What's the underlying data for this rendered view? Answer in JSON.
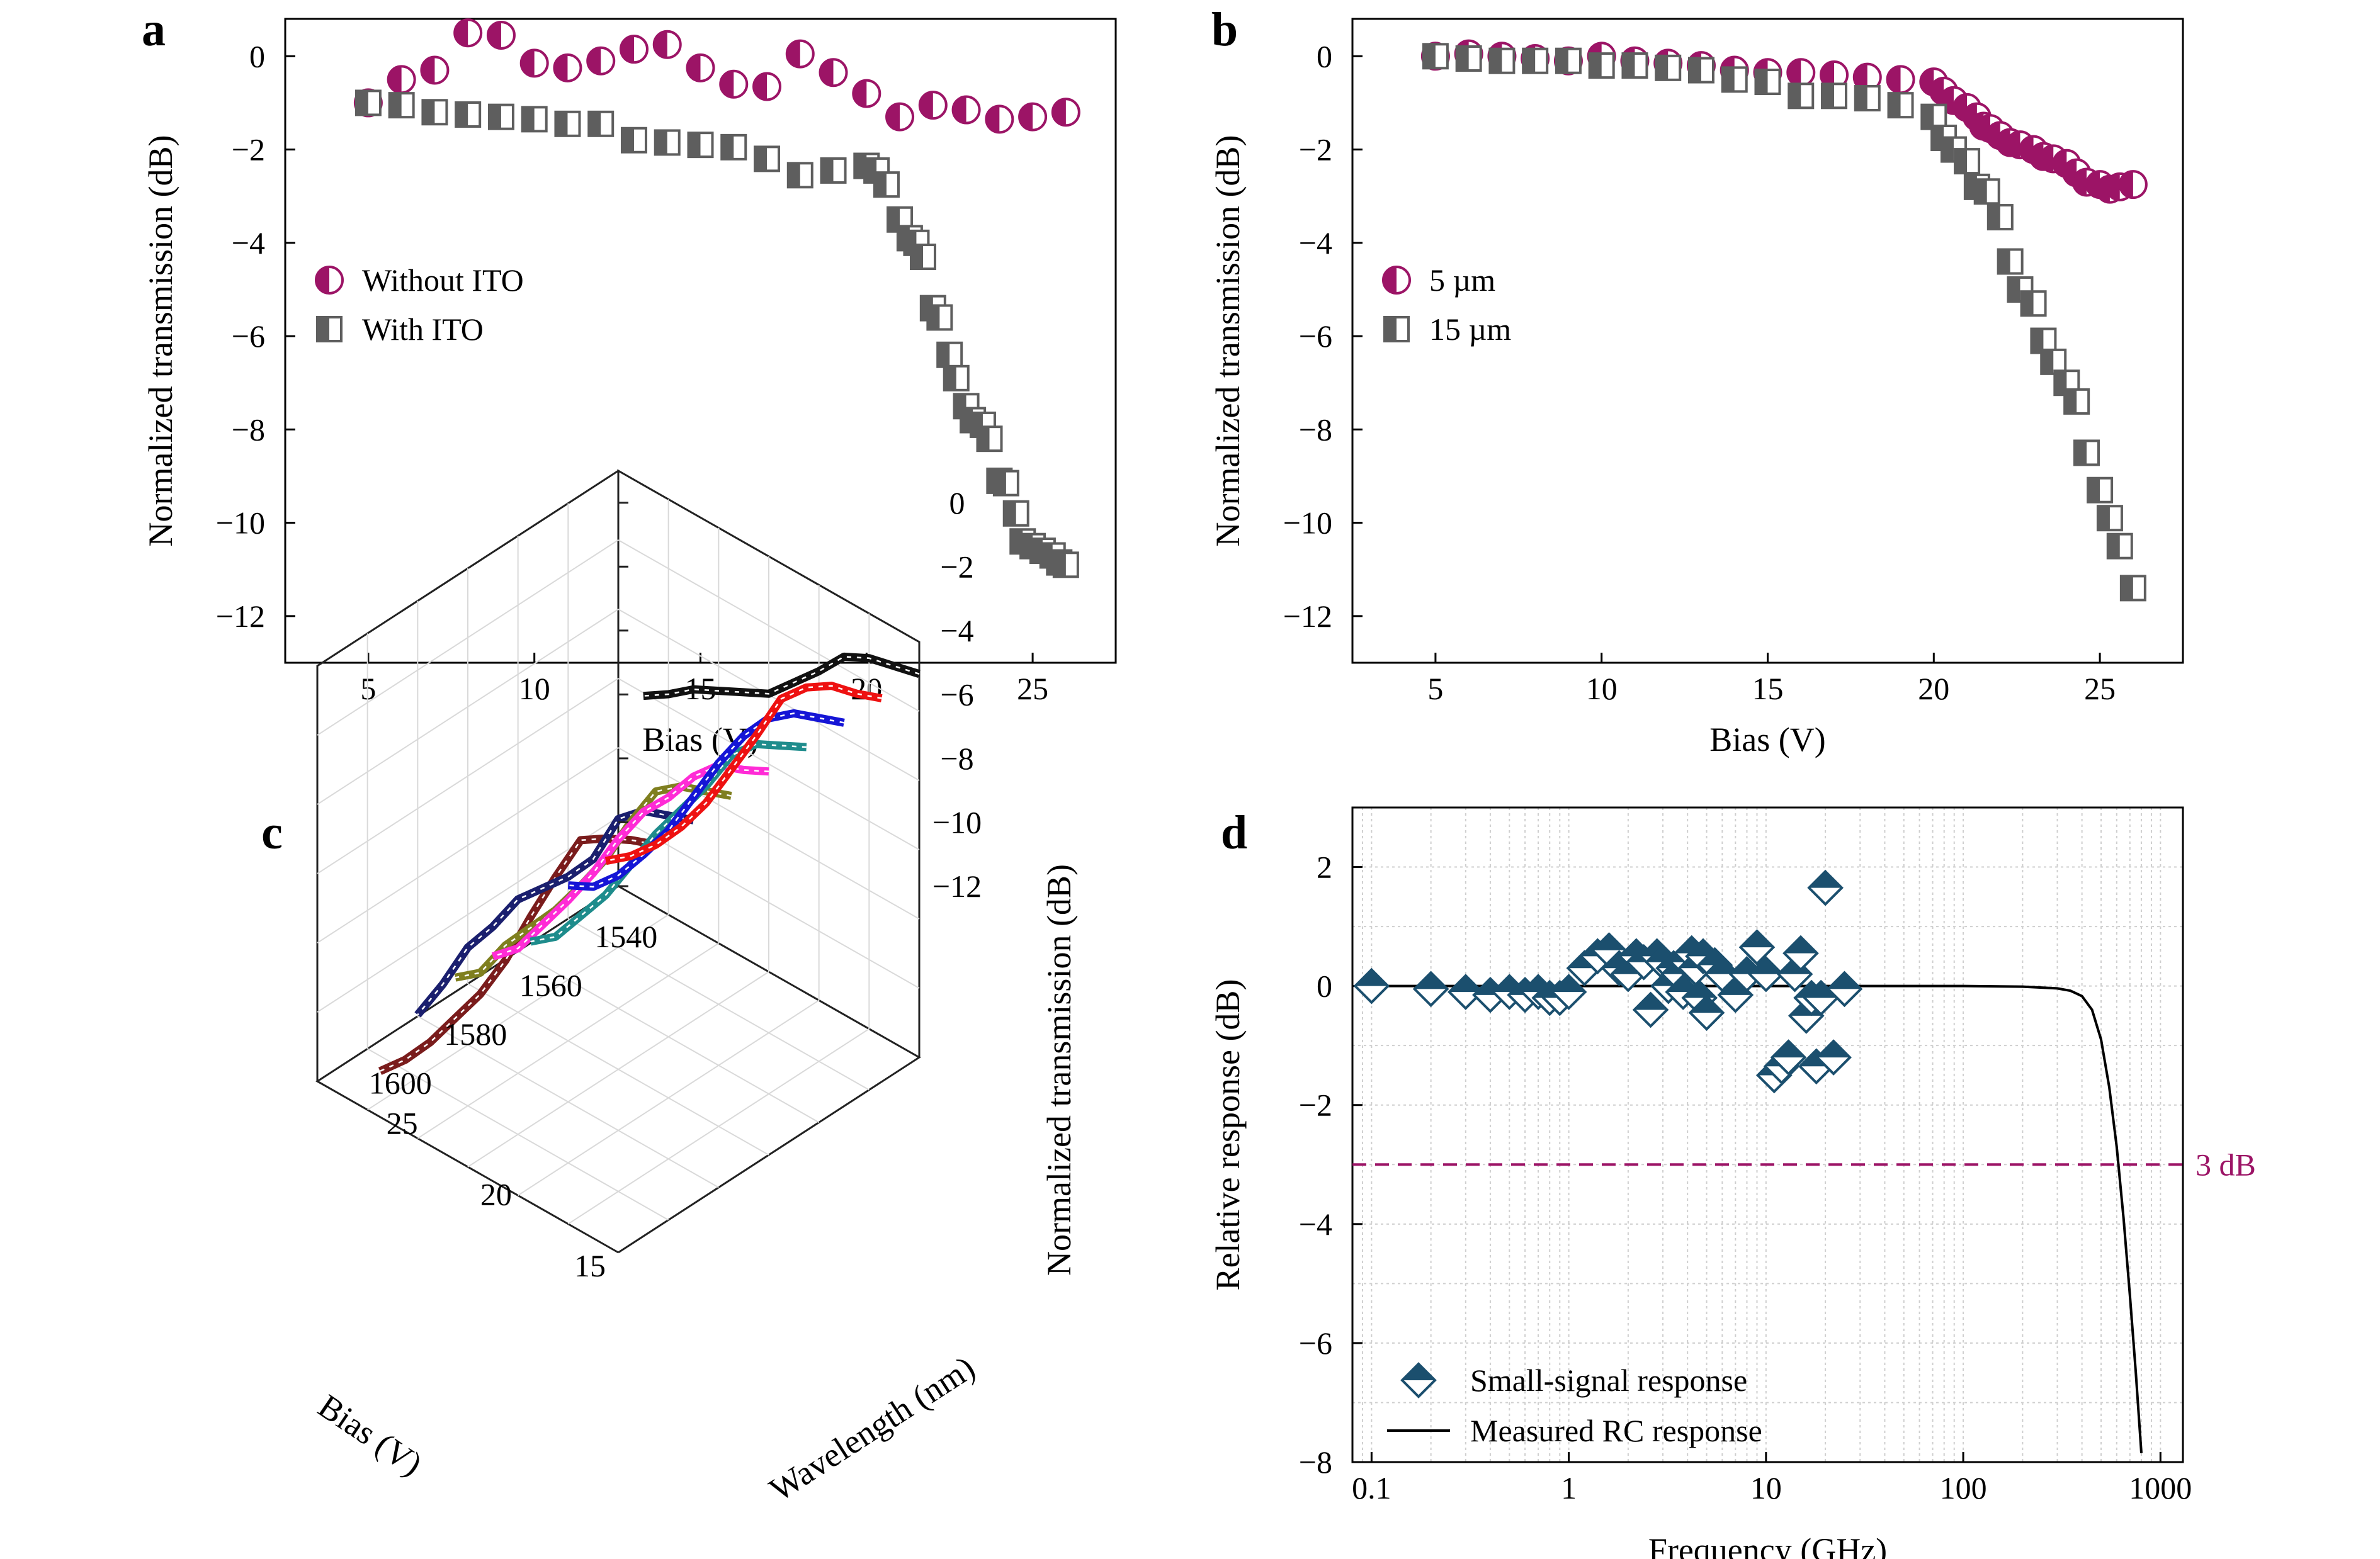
{
  "colors": {
    "magenta": "#9c1466",
    "gray": "#5e5e5e",
    "navy": "#1b4f6e",
    "dash": "#9c1466"
  },
  "chart_data": [
    {
      "panel": "a",
      "type": "scatter",
      "xlabel": "Bias (V)",
      "ylabel": "Normalized transmission (dB)",
      "xlim": [
        2.5,
        27.5
      ],
      "ylim": [
        -13,
        0.8
      ],
      "xticks": [
        "5",
        "10",
        "15",
        "20",
        "25"
      ],
      "yticks": [
        "0",
        "−2",
        "−4",
        "−6",
        "−8",
        "−10",
        "−12"
      ],
      "legend_position": "middle-left",
      "series": [
        {
          "name": "Without ITO",
          "marker": "half-circle",
          "x": [
            5,
            6,
            7,
            8,
            9,
            10,
            11,
            12,
            13,
            14,
            15,
            16,
            17,
            18,
            19,
            20,
            21,
            22,
            23,
            24,
            25,
            26
          ],
          "y": [
            -1.0,
            -0.5,
            -0.3,
            0.5,
            0.45,
            -0.15,
            -0.25,
            -0.1,
            0.15,
            0.25,
            -0.25,
            -0.6,
            -0.65,
            0.05,
            -0.35,
            -0.8,
            -1.3,
            -1.05,
            -1.15,
            -1.35,
            -1.3,
            -1.2
          ]
        },
        {
          "name": "With ITO",
          "marker": "half-square",
          "x": [
            5,
            6,
            7,
            8,
            9,
            10,
            11,
            12,
            13,
            14,
            15,
            16,
            17,
            18,
            19,
            20,
            20.3,
            20.6,
            21,
            21.3,
            21.5,
            21.7,
            22,
            22.2,
            22.5,
            22.7,
            23,
            23.2,
            23.5,
            23.7,
            24,
            24.2,
            24.5,
            24.7,
            25,
            25.3,
            25.6,
            25.8,
            26
          ],
          "y": [
            -1.0,
            -1.05,
            -1.2,
            -1.25,
            -1.3,
            -1.35,
            -1.45,
            -1.45,
            -1.8,
            -1.85,
            -1.9,
            -1.95,
            -2.2,
            -2.55,
            -2.45,
            -2.35,
            -2.45,
            -2.75,
            -3.5,
            -3.9,
            -4.0,
            -4.3,
            -5.4,
            -5.6,
            -6.4,
            -6.9,
            -7.5,
            -7.8,
            -7.9,
            -8.2,
            -9.1,
            -9.15,
            -9.8,
            -10.4,
            -10.5,
            -10.6,
            -10.7,
            -10.85,
            -10.9
          ]
        }
      ]
    },
    {
      "panel": "b",
      "type": "scatter",
      "xlabel": "Bias (V)",
      "ylabel": "Normalized transmission (dB)",
      "xlim": [
        2.5,
        27.5
      ],
      "ylim": [
        -13,
        0.8
      ],
      "xticks": [
        "5",
        "10",
        "15",
        "20",
        "25"
      ],
      "yticks": [
        "0",
        "−2",
        "−4",
        "−6",
        "−8",
        "−10",
        "−12"
      ],
      "legend_position": "middle-left",
      "series": [
        {
          "name": "5 µm",
          "marker": "half-circle",
          "x": [
            5,
            6,
            7,
            8,
            9,
            10,
            11,
            12,
            13,
            14,
            15,
            16,
            17,
            18,
            19,
            20,
            20.3,
            20.6,
            21,
            21.3,
            21.5,
            21.7,
            22,
            22.3,
            22.6,
            23,
            23.3,
            23.6,
            24,
            24.3,
            24.6,
            25,
            25.3,
            25.6,
            26
          ],
          "y": [
            0.0,
            0.05,
            0.0,
            -0.05,
            -0.1,
            0.0,
            -0.1,
            -0.15,
            -0.2,
            -0.3,
            -0.35,
            -0.35,
            -0.4,
            -0.45,
            -0.5,
            -0.55,
            -0.75,
            -0.95,
            -1.1,
            -1.3,
            -1.5,
            -1.55,
            -1.7,
            -1.85,
            -1.9,
            -2.0,
            -2.15,
            -2.2,
            -2.3,
            -2.5,
            -2.7,
            -2.75,
            -2.85,
            -2.8,
            -2.75
          ]
        },
        {
          "name": "15 µm",
          "marker": "half-square",
          "x": [
            5,
            6,
            7,
            8,
            9,
            10,
            11,
            12,
            13,
            14,
            15,
            16,
            17,
            18,
            19,
            20,
            20.3,
            20.6,
            21,
            21.3,
            21.6,
            22,
            22.3,
            22.6,
            23,
            23.3,
            23.6,
            24,
            24.3,
            24.6,
            25,
            25.3,
            25.6,
            26
          ],
          "y": [
            0.0,
            -0.05,
            -0.1,
            -0.1,
            -0.1,
            -0.2,
            -0.2,
            -0.25,
            -0.3,
            -0.5,
            -0.55,
            -0.85,
            -0.85,
            -0.9,
            -1.05,
            -1.3,
            -1.75,
            -2.0,
            -2.25,
            -2.8,
            -2.9,
            -3.45,
            -4.4,
            -5.0,
            -5.3,
            -6.1,
            -6.55,
            -7.0,
            -7.4,
            -8.5,
            -9.3,
            -9.9,
            -10.5,
            -11.4
          ]
        }
      ]
    },
    {
      "panel": "c",
      "type": "line",
      "projection": "3d-waterfall",
      "xlabel": "Bias (V)",
      "ylabel": "Wavelength (nm)",
      "zlabel": "Normalized transmission (dB)",
      "xticks": [
        "15",
        "20",
        "25"
      ],
      "yticks": [
        "1540",
        "1560",
        "1580",
        "1600"
      ],
      "zticks": [
        "0",
        "−2",
        "−4",
        "−6",
        "−8",
        "−10",
        "−12"
      ],
      "xlim": [
        15,
        27
      ],
      "ylim": [
        1530,
        1610
      ],
      "zlim": [
        -12,
        1
      ],
      "x": [
        15,
        16,
        17,
        18,
        19,
        20,
        21,
        22,
        23,
        24,
        25,
        26
      ],
      "series": [
        {
          "wavelength": 1600,
          "color": "#7a1c1c",
          "y": [
            0.0,
            -0.3,
            -0.7,
            -1.2,
            -2.8,
            -4.5,
            -6.3,
            -7.8,
            -9.0,
            -10.2,
            -11.2,
            -12.0
          ]
        },
        {
          "wavelength": 1590,
          "color": "#1a1f6e",
          "y": [
            0.0,
            -0.3,
            -0.6,
            -1.3,
            -3.0,
            -4.0,
            -4.8,
            -5.6,
            -6.9,
            -8.0,
            -9.6,
            -11.0
          ]
        },
        {
          "wavelength": 1580,
          "color": "#7f7f1f",
          "y": [
            0.0,
            -0.3,
            -0.6,
            -1.2,
            -2.6,
            -4.2,
            -5.5,
            -6.7,
            -7.7,
            -8.7,
            -10.0,
            -10.6
          ]
        },
        {
          "wavelength": 1570,
          "color": "#ff2bd6",
          "y": [
            0.0,
            -0.4,
            -0.7,
            -1.5,
            -2.6,
            -3.5,
            -4.8,
            -6.3,
            -7.6,
            -8.8,
            -10.0,
            -10.7
          ]
        },
        {
          "wavelength": 1560,
          "color": "#1e8c8c",
          "y": [
            0.0,
            -0.4,
            -0.8,
            -1.6,
            -3.0,
            -4.2,
            -5.4,
            -6.8,
            -8.2,
            -9.3,
            -10.4,
            -11.0
          ]
        },
        {
          "wavelength": 1550,
          "color": "#1515d6",
          "y": [
            0.0,
            -0.3,
            -0.6,
            -1.2,
            -2.2,
            -3.5,
            -5.0,
            -6.5,
            -7.7,
            -8.8,
            -9.6,
            -10.0
          ]
        },
        {
          "wavelength": 1540,
          "color": "#ee1111",
          "y": [
            0.0,
            -0.3,
            -0.5,
            -1.0,
            -1.8,
            -3.4,
            -4.9,
            -6.4,
            -7.6,
            -8.6,
            -9.4,
            -10.0
          ]
        },
        {
          "wavelength": 1530,
          "color": "#111111",
          "y": [
            0.0,
            -0.2,
            -0.4,
            -0.8,
            -1.7,
            -2.5,
            -3.3,
            -3.7,
            -4.1,
            -4.5,
            -5.1,
            -5.6
          ]
        }
      ]
    },
    {
      "panel": "d",
      "type": "scatter",
      "xscale": "log",
      "xlabel": "Frequency (GHz)",
      "ylabel": "Relative response (dB)",
      "xlim": [
        0.08,
        1300
      ],
      "ylim": [
        -8,
        3
      ],
      "xticks": [
        "0.1",
        "1",
        "10",
        "100",
        "1000"
      ],
      "yticks": [
        "2",
        "0",
        "−2",
        "−4",
        "−6",
        "−8"
      ],
      "grid": true,
      "legend_position": "bottom-left",
      "threshold_line": {
        "y": -3,
        "label": "3 dB"
      },
      "series": [
        {
          "name": "Small-signal response",
          "marker": "half-diamond",
          "x": [
            0.1,
            0.2,
            0.3,
            0.4,
            0.5,
            0.6,
            0.7,
            0.8,
            0.9,
            1.0,
            1.2,
            1.4,
            1.6,
            1.8,
            2.0,
            2.2,
            2.4,
            2.6,
            2.8,
            3.0,
            3.2,
            3.4,
            3.6,
            3.8,
            4.0,
            4.2,
            4.4,
            4.6,
            4.8,
            5.0,
            5.5,
            6.0,
            7.0,
            8.0,
            9.0,
            10.0,
            11.0,
            12.0,
            13.0,
            14.0,
            15.0,
            16.0,
            17.0,
            18.0,
            19.0,
            20.0,
            22.0,
            25.0
          ],
          "y": [
            0.0,
            -0.05,
            -0.1,
            -0.15,
            -0.1,
            -0.15,
            -0.1,
            -0.2,
            -0.2,
            -0.1,
            0.3,
            0.5,
            0.6,
            0.3,
            0.2,
            0.5,
            0.4,
            -0.4,
            0.5,
            0.4,
            0.0,
            0.3,
            0.2,
            -0.1,
            0.4,
            0.55,
            0.3,
            -0.2,
            0.5,
            -0.45,
            0.35,
            0.2,
            -0.15,
            0.2,
            0.65,
            0.2,
            -1.5,
            -1.35,
            -1.2,
            0.2,
            0.55,
            -0.5,
            -0.2,
            -1.35,
            -0.2,
            1.65,
            -1.2,
            -0.05
          ]
        },
        {
          "name": "Measured RC response",
          "type": "line",
          "x": [
            0.1,
            1,
            10,
            100,
            200,
            300,
            350,
            400,
            450,
            500,
            550,
            600,
            650,
            700,
            750,
            800
          ],
          "y": [
            0.0,
            0.0,
            0.0,
            0.0,
            -0.01,
            -0.04,
            -0.08,
            -0.17,
            -0.4,
            -0.9,
            -1.7,
            -2.7,
            -3.9,
            -5.2,
            -6.5,
            -7.85
          ]
        }
      ]
    }
  ]
}
